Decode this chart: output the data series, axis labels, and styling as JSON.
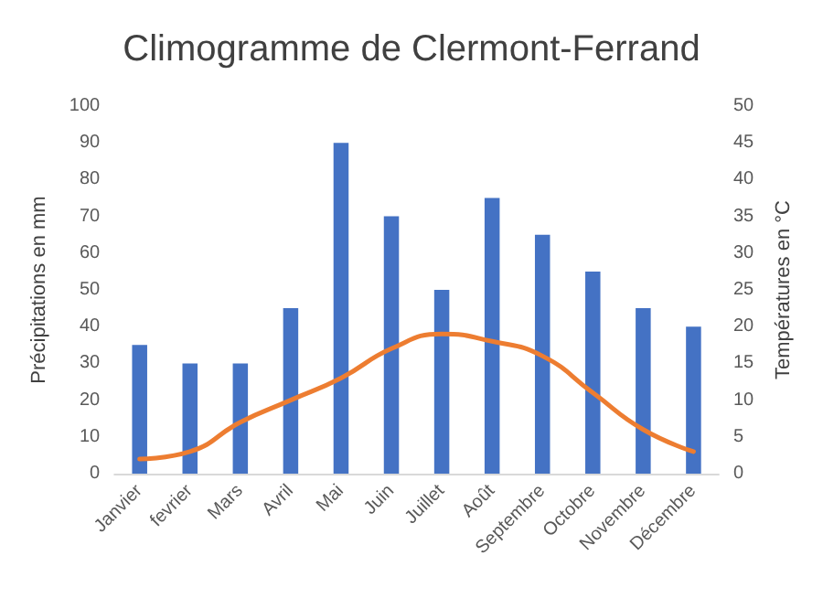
{
  "chart_data": {
    "type": "bar",
    "title": "Climogramme de Clermont-Ferrand",
    "ylabel": "Précipitations en mm",
    "y2label": "Températures en °C",
    "categories": [
      "Janvier",
      "fevrier",
      "Mars",
      "Avril",
      "Mai",
      "Juin",
      "Juillet",
      "Août",
      "Septembre",
      "Octobre",
      "Novembre",
      "Décembre"
    ],
    "series": [
      {
        "color": "#4472c4",
        "values": [
          35,
          30,
          30,
          45,
          90,
          70,
          50,
          75,
          65,
          55,
          45,
          40
        ]
      },
      {
        "type": "line",
        "axis": "y2",
        "color": "#ed7d31",
        "values": [
          2,
          3,
          7,
          10,
          13,
          17,
          19,
          18,
          16,
          11,
          6,
          3
        ]
      }
    ],
    "ylim": [
      0,
      100
    ],
    "yticks": [
      0,
      10,
      20,
      30,
      40,
      50,
      60,
      70,
      80,
      90,
      100
    ],
    "y2lim": [
      0,
      50
    ],
    "y2ticks": [
      0,
      5,
      10,
      15,
      20,
      25,
      30,
      35,
      40,
      45,
      50
    ],
    "grid": false,
    "marker": "none"
  }
}
